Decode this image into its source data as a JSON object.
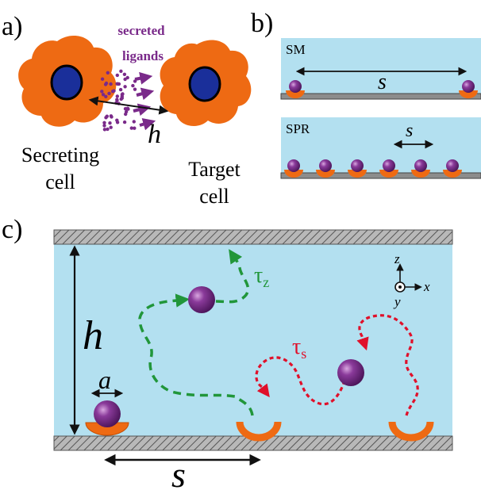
{
  "panel_labels": {
    "a": "a)",
    "b": "b)",
    "c": "c)"
  },
  "panel_a": {
    "ligand_label_line1": "secreted",
    "ligand_label_line2": "ligands",
    "distance_symbol": "h",
    "secreting_cell_line1": "Secreting",
    "secreting_cell_line2": "cell",
    "target_cell_line1": "Target",
    "target_cell_line2": "cell"
  },
  "panel_b": {
    "sm_label": "SM",
    "sm_spacing_symbol": "s",
    "spr_label": "SPR",
    "spr_spacing_symbol": "s"
  },
  "panel_c": {
    "height_symbol": "h",
    "radius_symbol": "a",
    "spacing_symbol": "s",
    "tau_z": "τ",
    "tau_z_sub": "z",
    "tau_s": "τ",
    "tau_s_sub": "s",
    "axis_z": "z",
    "axis_x": "x",
    "axis_y": "y"
  },
  "colors": {
    "cell": "#ee6a13",
    "nucleus": "#1a2f9a",
    "ligand": "#7a2a8a",
    "medium": "#b3e0f0",
    "receptor": "#ee6a13",
    "green_path": "#21963a",
    "red_path": "#e0102a",
    "surface": "#8c8c8c"
  }
}
